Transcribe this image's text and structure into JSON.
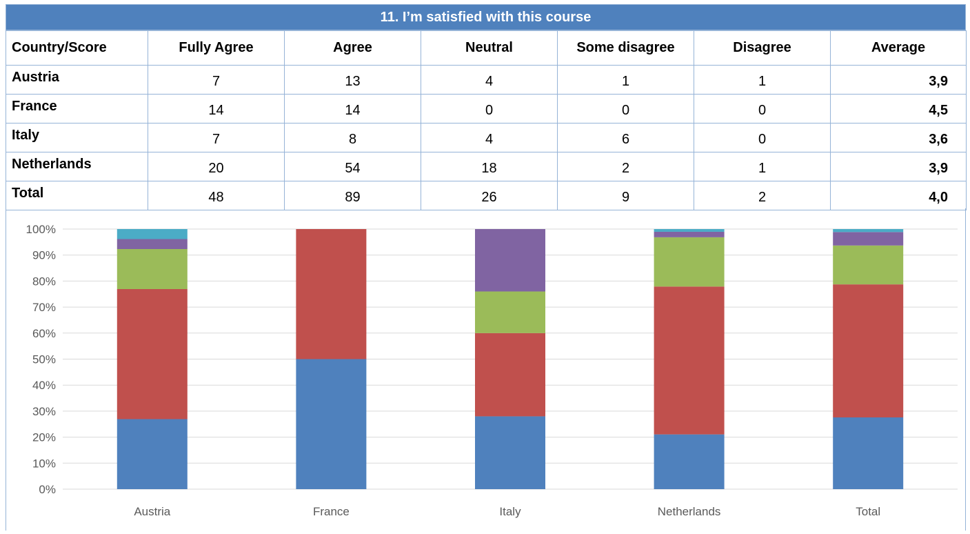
{
  "title": "11. I’m satisfied with this course",
  "table": {
    "headers": [
      "Country/Score",
      "Fully Agree",
      "Agree",
      "Neutral",
      "Some disagree",
      "Disagree",
      "Average"
    ],
    "rows": [
      {
        "label": "Austria",
        "values": [
          "7",
          "13",
          "4",
          "1",
          "1"
        ],
        "average": "3,9"
      },
      {
        "label": "France",
        "values": [
          "14",
          "14",
          "0",
          "0",
          "0"
        ],
        "average": "4,5"
      },
      {
        "label": "Italy",
        "values": [
          "7",
          "8",
          "4",
          "6",
          "0"
        ],
        "average": "3,6"
      },
      {
        "label": "Netherlands",
        "values": [
          "20",
          "54",
          "18",
          "2",
          "1"
        ],
        "average": "3,9"
      },
      {
        "label": "Total",
        "values": [
          "48",
          "89",
          "26",
          "9",
          "2"
        ],
        "average": "4,0"
      }
    ]
  },
  "chart_data": {
    "type": "bar",
    "stacked": "percent",
    "categories": [
      "Austria",
      "France",
      "Italy",
      "Netherlands",
      "Total"
    ],
    "series": [
      {
        "values": [
          7,
          14,
          7,
          20,
          48
        ],
        "color": "#4f81bd"
      },
      {
        "values": [
          13,
          14,
          8,
          54,
          89
        ],
        "color": "#c0504d"
      },
      {
        "values": [
          4,
          0,
          4,
          18,
          26
        ],
        "color": "#9bbb59"
      },
      {
        "values": [
          1,
          0,
          6,
          2,
          9
        ],
        "color": "#8064a2"
      },
      {
        "values": [
          1,
          0,
          0,
          1,
          2
        ],
        "color": "#4bacc6"
      }
    ],
    "y_ticks": [
      "0%",
      "10%",
      "20%",
      "30%",
      "40%",
      "50%",
      "60%",
      "70%",
      "80%",
      "90%",
      "100%"
    ],
    "ylim": [
      0,
      100
    ],
    "grid": true,
    "legend": "none"
  },
  "colors": {
    "header": "#4f81bd",
    "border": "#95b3d7",
    "gridline": "#d9d9d9"
  }
}
